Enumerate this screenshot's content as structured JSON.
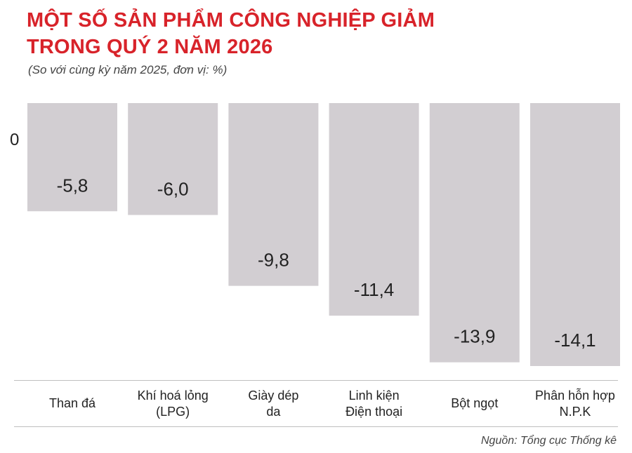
{
  "title_lines": [
    "MỘT SỐ SẢN PHẨM CÔNG NGHIỆP GIẢM",
    "TRONG QUÝ 2 NĂM 2026"
  ],
  "subtitle": "(So với cùng kỳ năm 2025, đơn vị: %)",
  "source": "Nguồn: Tổng cục Thống kê",
  "colors": {
    "title": "#d8232a",
    "bar": "#d2ced2",
    "text": "#222222"
  },
  "chart_data": {
    "type": "bar",
    "title": "MỘT SỐ SẢN PHẨM CÔNG NGHIỆP GIẢM TRONG QUÝ 2 NĂM 2026",
    "subtitle": "(So với cùng kỳ năm 2025, đơn vị: %)",
    "categories": [
      [
        "Than đá"
      ],
      [
        "Khí hoá lỏng",
        "(LPG)"
      ],
      [
        "Giày dép",
        "da"
      ],
      [
        "Linh kiện",
        "Điện thoại"
      ],
      [
        "Bột ngọt"
      ],
      [
        "Phân hỗn hợp",
        "N.P.K"
      ]
    ],
    "values": [
      -5.8,
      -6.0,
      -9.8,
      -11.4,
      -13.9,
      -14.1
    ],
    "value_labels": [
      "-5,8",
      "-6,0",
      "-9,8",
      "-11,4",
      "-13,9",
      "-14,1"
    ],
    "zero_label": "0",
    "ylim": [
      -14.1,
      0
    ],
    "grid": false,
    "legend": "none"
  }
}
